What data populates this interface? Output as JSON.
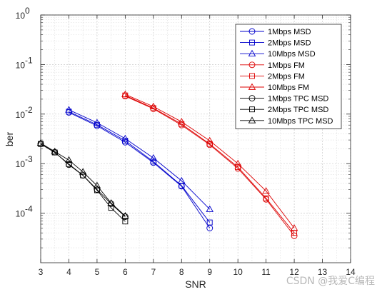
{
  "chart_data": {
    "type": "line",
    "title": "",
    "xlabel": "SNR",
    "ylabel": "ber",
    "xlim": [
      3,
      14
    ],
    "ylim": [
      1e-05,
      1
    ],
    "yscale": "log",
    "grid": true,
    "minor_grid": true,
    "legend_position": "top-right",
    "xticks": [
      "3",
      "4",
      "5",
      "6",
      "7",
      "8",
      "9",
      "10",
      "11",
      "12",
      "13",
      "14"
    ],
    "yticks": [
      {
        "value": 1,
        "label": "10",
        "exp": "0"
      },
      {
        "value": 0.1,
        "label": "10",
        "exp": "-1"
      },
      {
        "value": 0.01,
        "label": "10",
        "exp": "-2"
      },
      {
        "value": 0.001,
        "label": "10",
        "exp": "-3"
      },
      {
        "value": 0.0001,
        "label": "10",
        "exp": "-4"
      }
    ],
    "series": [
      {
        "name": "1Mbps MSD",
        "color": "#0000cc",
        "marker": "circle",
        "x": [
          4,
          5,
          6,
          7,
          8,
          9
        ],
        "y": [
          0.0108,
          0.0058,
          0.0027,
          0.00105,
          0.00035,
          5e-05
        ]
      },
      {
        "name": "2Mbps MSD",
        "color": "#0000cc",
        "marker": "square",
        "x": [
          4,
          5,
          6,
          7,
          8,
          9
        ],
        "y": [
          0.0112,
          0.0061,
          0.0029,
          0.0011,
          0.00036,
          6.5e-05
        ]
      },
      {
        "name": "10Mbps MSD",
        "color": "#0000cc",
        "marker": "triangle",
        "x": [
          4,
          5,
          6,
          7,
          8,
          9
        ],
        "y": [
          0.0122,
          0.0067,
          0.0032,
          0.0013,
          0.00045,
          0.00012
        ]
      },
      {
        "name": "1Mbps FM",
        "color": "#dd0000",
        "marker": "circle",
        "x": [
          6,
          7,
          8,
          9,
          10,
          11,
          12
        ],
        "y": [
          0.023,
          0.0128,
          0.006,
          0.0024,
          0.0008,
          0.00019,
          3.5e-05
        ]
      },
      {
        "name": "2Mbps FM",
        "color": "#dd0000",
        "marker": "square",
        "x": [
          6,
          7,
          8,
          9,
          10,
          11,
          12
        ],
        "y": [
          0.0238,
          0.0132,
          0.0063,
          0.0025,
          0.00085,
          0.0002,
          4e-05
        ]
      },
      {
        "name": "10Mbps FM",
        "color": "#dd0000",
        "marker": "triangle",
        "x": [
          6,
          7,
          8,
          9,
          10,
          11,
          12
        ],
        "y": [
          0.025,
          0.0142,
          0.007,
          0.0029,
          0.001,
          0.00028,
          5e-05
        ]
      },
      {
        "name": "1Mbps TPC MSD",
        "color": "#000000",
        "marker": "circle",
        "x": [
          3,
          3.5,
          4,
          4.5,
          5,
          5.5,
          6
        ],
        "y": [
          0.0025,
          0.0017,
          0.00095,
          0.00058,
          0.0003,
          0.000155,
          8.5e-05
        ]
      },
      {
        "name": "2Mbps TPC MSD",
        "color": "#000000",
        "marker": "square",
        "x": [
          3,
          3.5,
          4,
          4.5,
          5,
          5.5,
          6
        ],
        "y": [
          0.0025,
          0.00168,
          0.00098,
          0.00058,
          0.00029,
          0.000128,
          6.8e-05
        ]
      },
      {
        "name": "10Mbps TPC MSD",
        "color": "#000000",
        "marker": "triangle",
        "x": [
          3,
          3.5,
          4,
          4.5,
          5,
          5.5,
          6
        ],
        "y": [
          0.0026,
          0.00175,
          0.00118,
          0.00068,
          0.00036,
          0.00016,
          8.8e-05
        ]
      }
    ]
  },
  "watermark": "CSDN @我爱C编程"
}
